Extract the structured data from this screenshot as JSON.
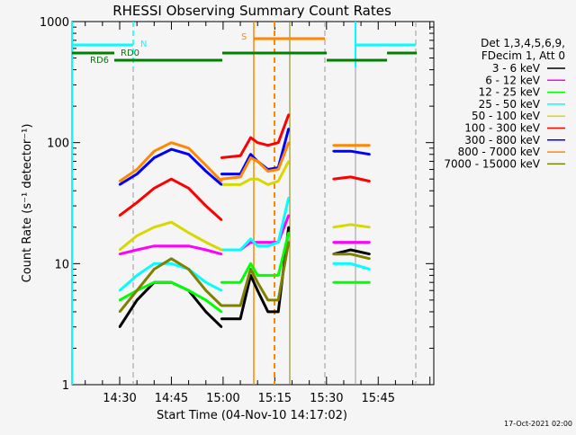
{
  "chart_data": {
    "type": "line",
    "title": "RHESSI Observing Summary Count Rates",
    "xlabel": "Start Time (04-Nov-10 14:17:02)",
    "ylabel": "Count Rate (s⁻¹ detector⁻¹)",
    "yscale": "log",
    "ylim": [
      1,
      1000
    ],
    "xlim_minutes_after_1400": [
      17,
      61.5
    ],
    "x_unit": "minutes after 14:00 (offset +60 for 15:xx)",
    "x_ticks": [
      {
        "t": 30,
        "label": "14:30"
      },
      {
        "t": 45,
        "label": "14:45"
      },
      {
        "t": 60,
        "label": "15:00"
      },
      {
        "t": 75,
        "label": "15:15"
      },
      {
        "t": 90,
        "label": "15:30"
      },
      {
        "t": 105,
        "label": "15:45"
      }
    ],
    "y_ticks": [
      {
        "v": 1,
        "label": "1"
      },
      {
        "v": 10,
        "label": "10"
      },
      {
        "v": 100,
        "label": "100"
      },
      {
        "v": 1000,
        "label": "1000"
      }
    ],
    "legend_header": [
      "Det 1,3,4,5,6,9,",
      "FDecim 1, Att 0"
    ],
    "legend_position": "right",
    "segments_t": [
      [
        30,
        35,
        40,
        45,
        50,
        55,
        59.5
      ],
      [
        59.5,
        65,
        68,
        70,
        73,
        76,
        79
      ],
      [
        92,
        97,
        102.5
      ]
    ],
    "series": [
      {
        "name": "3 - 6 keV",
        "color": "#000000",
        "values": [
          [
            3,
            5,
            7,
            7,
            6,
            4,
            3
          ],
          [
            3.5,
            3.5,
            8,
            6,
            4,
            4,
            20
          ],
          [
            12,
            13,
            12
          ]
        ]
      },
      {
        "name": "6 - 12 keV",
        "color": "#ff00ff",
        "values": [
          [
            12,
            13,
            14,
            14,
            14,
            13,
            12
          ],
          [
            13,
            13,
            15,
            15,
            15,
            15,
            25
          ],
          [
            15,
            15,
            15
          ]
        ]
      },
      {
        "name": "12 - 25 keV",
        "color": "#00ff00",
        "values": [
          [
            5,
            6,
            7,
            7,
            6,
            5,
            4
          ],
          [
            7,
            7,
            10,
            8,
            8,
            8,
            18
          ],
          [
            7,
            7,
            7
          ]
        ]
      },
      {
        "name": "25 - 50 keV",
        "color": "#00ffff",
        "values": [
          [
            6,
            8,
            10,
            10,
            9,
            7,
            6
          ],
          [
            13,
            13,
            16,
            14,
            14,
            15,
            35
          ],
          [
            10,
            10,
            9
          ]
        ]
      },
      {
        "name": "50 - 100 keV",
        "color": "#d8d800",
        "values": [
          [
            13,
            17,
            20,
            22,
            18,
            15,
            13
          ],
          [
            45,
            45,
            50,
            50,
            45,
            48,
            70
          ],
          [
            20,
            21,
            20
          ]
        ]
      },
      {
        "name": "100 - 300 keV",
        "color": "#ff0000",
        "values": [
          [
            25,
            32,
            42,
            50,
            42,
            30,
            23
          ],
          [
            75,
            78,
            110,
            100,
            95,
            100,
            170
          ],
          [
            50,
            52,
            48
          ]
        ]
      },
      {
        "name": "300 - 800 keV",
        "color": "#0000ff",
        "values": [
          [
            45,
            55,
            75,
            88,
            80,
            58,
            45
          ],
          [
            55,
            55,
            80,
            70,
            60,
            62,
            130
          ],
          [
            85,
            85,
            80
          ]
        ]
      },
      {
        "name": "800 - 7000 keV",
        "color": "#ff8800",
        "values": [
          [
            48,
            60,
            85,
            100,
            90,
            65,
            48
          ],
          [
            50,
            52,
            75,
            70,
            58,
            60,
            100
          ],
          [
            95,
            95,
            95
          ]
        ]
      },
      {
        "name": "7000 - 15000 keV",
        "color": "#808000",
        "values": [
          [
            4,
            6,
            9,
            11,
            9,
            6,
            4.5
          ],
          [
            4.5,
            4.5,
            9,
            7,
            5,
            5,
            15
          ],
          [
            12,
            12,
            11
          ]
        ]
      }
    ],
    "annotations": [
      {
        "label": "N",
        "color": "#00ffff"
      },
      {
        "label": "RD0",
        "color": "#008000"
      },
      {
        "label": "RD6",
        "color": "#008000"
      },
      {
        "label": "S",
        "color": "#ff8800"
      }
    ]
  },
  "footer_timestamp": "17-Oct-2021 02:00"
}
